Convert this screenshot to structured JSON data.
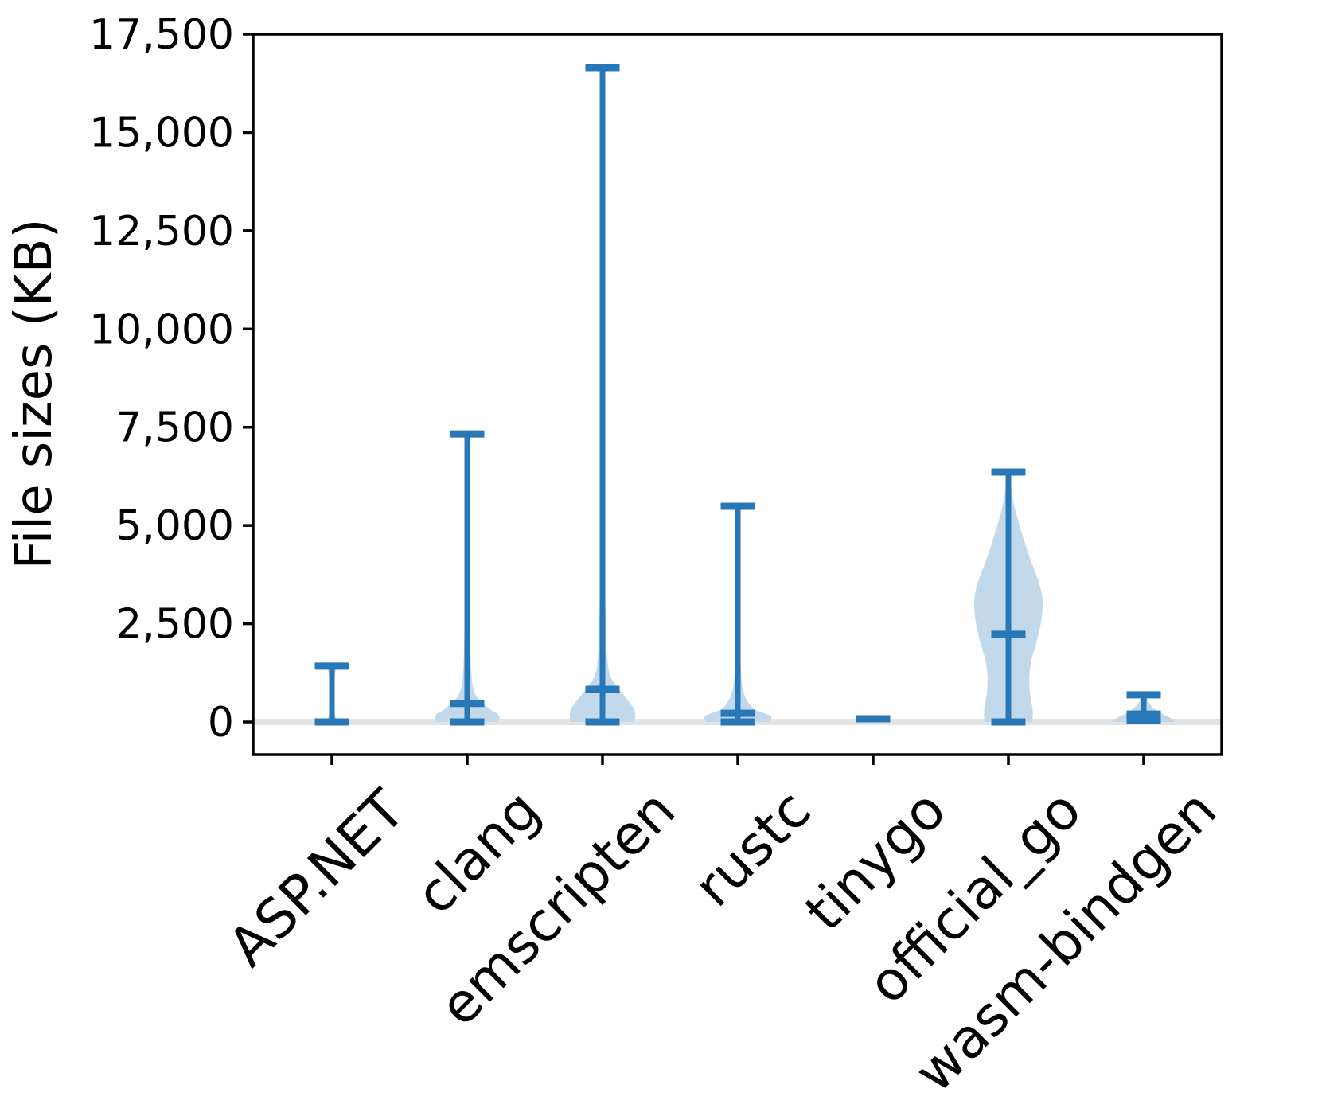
{
  "chart_data": {
    "type": "violin",
    "title": "",
    "xlabel": "",
    "ylabel": "File sizes (KB)",
    "categories": [
      "ASP.NET",
      "clang",
      "emscripten",
      "rustc",
      "tinygo",
      "official_go",
      "wasm-bindgen"
    ],
    "y_axis": {
      "min": -830,
      "max": 17500,
      "ticks": [
        0,
        2500,
        5000,
        7500,
        10000,
        12500,
        15000,
        17500
      ],
      "tick_labels": [
        "0",
        "2,500",
        "5,000",
        "7,500",
        "10,000",
        "12,500",
        "15,000",
        "17,500"
      ]
    },
    "grid": false,
    "legend": false,
    "zero_line_value": 0,
    "colors": {
      "line": "#2878b8",
      "fill": "#c2d8eb",
      "zero_line": "#e3e3e3",
      "axis": "#000000"
    },
    "series": [
      {
        "name": "ASP.NET",
        "min": 0,
        "max": 1420,
        "mean": null,
        "profile": [
          [
            0,
            7
          ],
          [
            150,
            4
          ],
          [
            400,
            2.5
          ],
          [
            1000,
            2.5
          ],
          [
            1270,
            4
          ],
          [
            1420,
            7
          ]
        ]
      },
      {
        "name": "clang",
        "min": 0,
        "max": 7330,
        "mean": 470,
        "profile": [
          [
            0,
            38
          ],
          [
            70,
            40
          ],
          [
            140,
            41
          ],
          [
            220,
            38
          ],
          [
            300,
            30
          ],
          [
            380,
            25
          ],
          [
            470,
            21
          ],
          [
            560,
            15
          ],
          [
            700,
            10
          ],
          [
            900,
            7
          ],
          [
            1100,
            5.5
          ],
          [
            1500,
            4.5
          ],
          [
            2200,
            3.5
          ],
          [
            3500,
            2.8
          ],
          [
            5000,
            2.2
          ],
          [
            7330,
            1.8
          ]
        ]
      },
      {
        "name": "emscripten",
        "min": 0,
        "max": 16650,
        "mean": 830,
        "profile": [
          [
            0,
            40
          ],
          [
            140,
            41.5
          ],
          [
            280,
            41
          ],
          [
            420,
            37
          ],
          [
            550,
            32
          ],
          [
            700,
            26
          ],
          [
            830,
            21
          ],
          [
            950,
            16
          ],
          [
            1100,
            11
          ],
          [
            1250,
            8.5
          ],
          [
            1400,
            7
          ],
          [
            1700,
            5.5
          ],
          [
            2200,
            4.5
          ],
          [
            3000,
            3.5
          ],
          [
            4500,
            2.8
          ],
          [
            7000,
            2.2
          ],
          [
            16650,
            1.8
          ]
        ]
      },
      {
        "name": "rustc",
        "min": 0,
        "max": 5490,
        "mean": 220,
        "profile": [
          [
            0,
            40
          ],
          [
            80,
            42
          ],
          [
            140,
            43
          ],
          [
            220,
            34
          ],
          [
            300,
            22
          ],
          [
            380,
            17
          ],
          [
            450,
            15
          ],
          [
            550,
            11
          ],
          [
            700,
            8
          ],
          [
            900,
            5.5
          ],
          [
            1200,
            4
          ],
          [
            2000,
            3
          ],
          [
            3500,
            2.2
          ],
          [
            5490,
            1.8
          ]
        ]
      },
      {
        "name": "tinygo",
        "min": null,
        "max": null,
        "mean": 80,
        "profile": null
      },
      {
        "name": "official_go",
        "min": 0,
        "max": 6360,
        "mean": 2230,
        "profile": [
          [
            0,
            30
          ],
          [
            200,
            31
          ],
          [
            400,
            30
          ],
          [
            700,
            27
          ],
          [
            1000,
            26
          ],
          [
            1300,
            26.5
          ],
          [
            1600,
            29
          ],
          [
            2000,
            35
          ],
          [
            2400,
            40
          ],
          [
            2800,
            43
          ],
          [
            3200,
            43
          ],
          [
            3600,
            38
          ],
          [
            4000,
            30
          ],
          [
            4400,
            23
          ],
          [
            4800,
            17
          ],
          [
            5200,
            11
          ],
          [
            5600,
            6
          ],
          [
            6000,
            3
          ],
          [
            6360,
            2
          ]
        ]
      },
      {
        "name": "wasm-bindgen",
        "min": 30,
        "max": 690,
        "mean": 200,
        "profile": [
          [
            0,
            40
          ],
          [
            80,
            36
          ],
          [
            160,
            28
          ],
          [
            240,
            20
          ],
          [
            320,
            14
          ],
          [
            420,
            9
          ],
          [
            520,
            5.5
          ],
          [
            690,
            3
          ]
        ]
      }
    ]
  }
}
